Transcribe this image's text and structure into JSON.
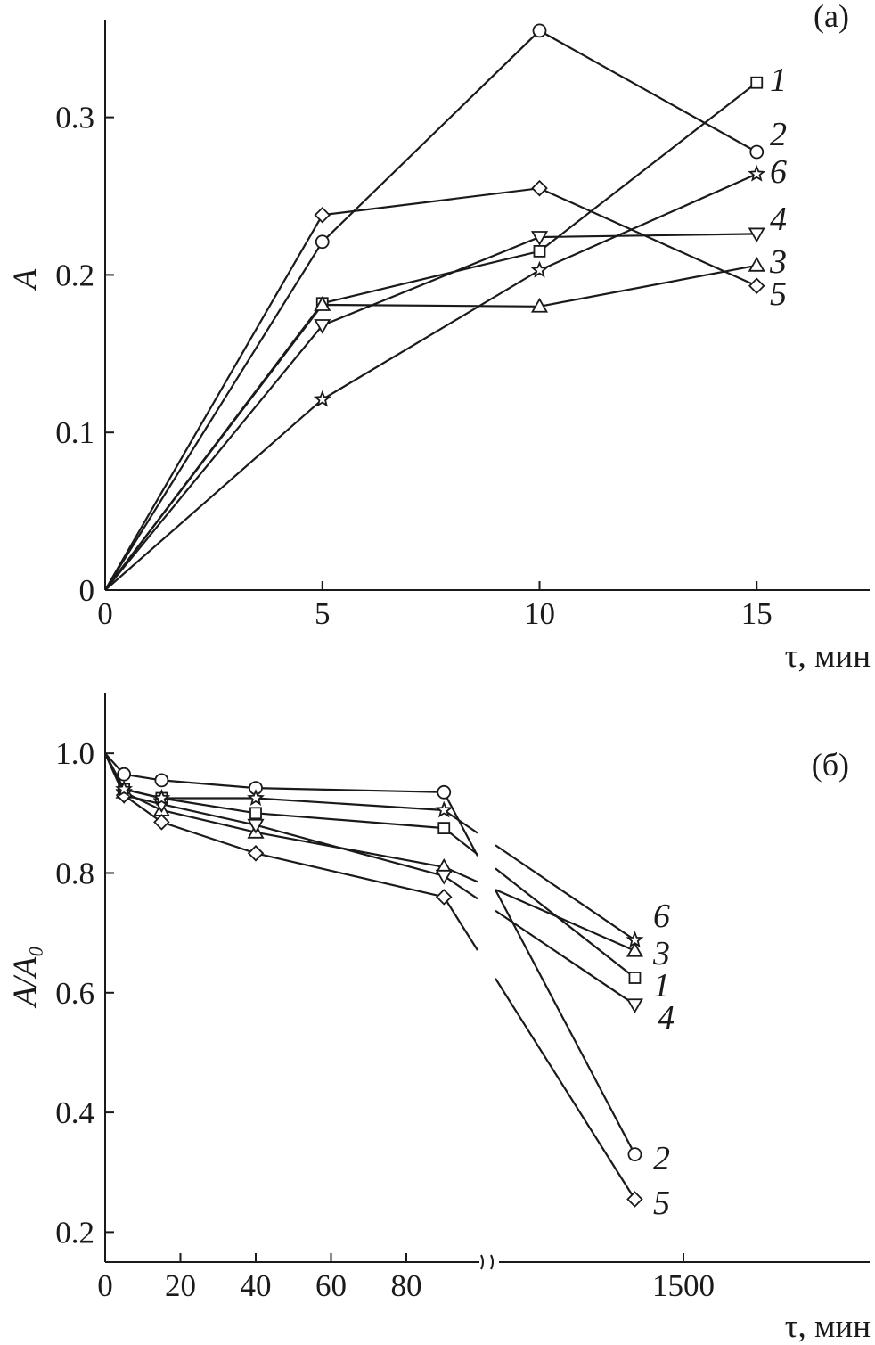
{
  "chart_data": [
    {
      "type": "line",
      "panel_label": "(a)",
      "xlabel": "τ, мин",
      "ylabel": "A",
      "xlim": [
        0,
        17.6
      ],
      "ylim": [
        0,
        0.362
      ],
      "xticks": [
        0,
        5,
        10,
        15
      ],
      "xtick_labels": [
        "0",
        "5",
        "10",
        "15"
      ],
      "yticks": [
        0,
        0.1,
        0.2,
        0.3
      ],
      "ytick_labels": [
        "0",
        "0.1",
        "0.2",
        "0.3"
      ],
      "grid": false,
      "legend": "none",
      "series": [
        {
          "name": "1",
          "marker": "square",
          "x": [
            0,
            5,
            10,
            15
          ],
          "y": [
            0,
            0.182,
            0.215,
            0.322
          ]
        },
        {
          "name": "2",
          "marker": "circle",
          "x": [
            0,
            5,
            10,
            15
          ],
          "y": [
            0,
            0.221,
            0.355,
            0.278
          ]
        },
        {
          "name": "3",
          "marker": "triangle-up",
          "x": [
            0,
            5,
            10,
            15
          ],
          "y": [
            0,
            0.181,
            0.18,
            0.206
          ]
        },
        {
          "name": "4",
          "marker": "triangle-down",
          "x": [
            0,
            5,
            10,
            15
          ],
          "y": [
            0,
            0.168,
            0.224,
            0.226
          ]
        },
        {
          "name": "5",
          "marker": "diamond",
          "x": [
            0,
            5,
            10,
            15
          ],
          "y": [
            0,
            0.238,
            0.255,
            0.193
          ]
        },
        {
          "name": "6",
          "marker": "star",
          "x": [
            0,
            5,
            10,
            15
          ],
          "y": [
            0,
            0.121,
            0.203,
            0.264
          ]
        }
      ]
    },
    {
      "type": "line",
      "panel_label": "(б)",
      "xlabel": "τ, мин",
      "ylabel": "A/A₀",
      "xlim": [
        0,
        1500
      ],
      "ylim": [
        0.15,
        1.1
      ],
      "x_scale": "broken axis between 80 and 1500",
      "xticks": [
        0,
        20,
        40,
        60,
        80,
        1500
      ],
      "xtick_labels": [
        "0",
        "20",
        "40",
        "60",
        "80",
        "1500"
      ],
      "yticks": [
        0.2,
        0.4,
        0.6,
        0.8,
        1.0
      ],
      "ytick_labels": [
        "0.2",
        "0.4",
        "0.6",
        "0.8",
        "1.0"
      ],
      "grid": false,
      "legend": "none",
      "series": [
        {
          "name": "1",
          "marker": "square",
          "x": [
            0,
            5,
            15,
            40,
            90,
            1440
          ],
          "y": [
            1.0,
            0.94,
            0.925,
            0.9,
            0.875,
            0.625
          ]
        },
        {
          "name": "2",
          "marker": "circle",
          "x": [
            0,
            5,
            15,
            40,
            90,
            1440
          ],
          "y": [
            1.0,
            0.965,
            0.955,
            0.942,
            0.935,
            0.33
          ]
        },
        {
          "name": "3",
          "marker": "triangle-up",
          "x": [
            0,
            5,
            15,
            40,
            90,
            1440
          ],
          "y": [
            1.0,
            0.935,
            0.905,
            0.868,
            0.81,
            0.67
          ]
        },
        {
          "name": "4",
          "marker": "triangle-down",
          "x": [
            0,
            5,
            15,
            40,
            90,
            1440
          ],
          "y": [
            1.0,
            0.93,
            0.915,
            0.88,
            0.795,
            0.58
          ]
        },
        {
          "name": "5",
          "marker": "diamond",
          "x": [
            0,
            5,
            15,
            40,
            90,
            1440
          ],
          "y": [
            1.0,
            0.93,
            0.885,
            0.833,
            0.76,
            0.255
          ]
        },
        {
          "name": "6",
          "marker": "star",
          "x": [
            0,
            5,
            15,
            40,
            90,
            1440
          ],
          "y": [
            1.0,
            0.94,
            0.925,
            0.925,
            0.905,
            0.688
          ]
        }
      ]
    }
  ]
}
